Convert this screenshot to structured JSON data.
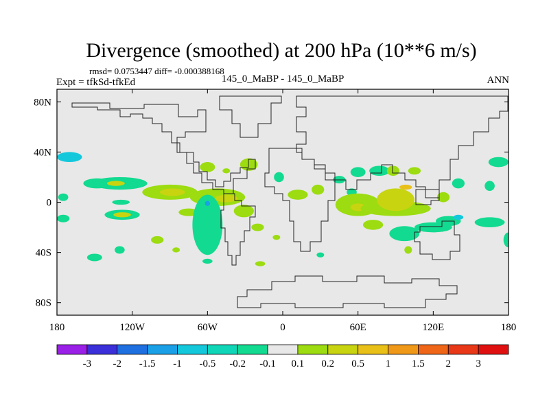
{
  "chart_data": {
    "type": "heatmap",
    "title": "Divergence (smoothed) at 200 hPa (10**6 m/s)",
    "stats": "rmsd= 0.0753447 diff= -0.000388168",
    "left_label": "Expt = tfkSd-tfkEd",
    "center_label": "145_0_MaBP - 145_0_MaBP",
    "right_label": "ANN",
    "xlim": [
      -180,
      180
    ],
    "ylim": [
      -90,
      90
    ],
    "x_ticks": [
      {
        "value": -180,
        "label": "180"
      },
      {
        "value": -120,
        "label": "120W"
      },
      {
        "value": -60,
        "label": "60W"
      },
      {
        "value": 0,
        "label": "0"
      },
      {
        "value": 60,
        "label": "60E"
      },
      {
        "value": 120,
        "label": "120E"
      },
      {
        "value": 180,
        "label": "180"
      }
    ],
    "y_ticks": [
      {
        "value": 80,
        "label": "80N"
      },
      {
        "value": 40,
        "label": "40N"
      },
      {
        "value": 0,
        "label": "0"
      },
      {
        "value": -40,
        "label": "40S"
      },
      {
        "value": -80,
        "label": "80S"
      }
    ],
    "background_color": "#e8e8e8",
    "colorbar": {
      "labels": [
        "-3",
        "-2",
        "-1.5",
        "-1",
        "-0.5",
        "-0.2",
        "-0.1",
        "0.1",
        "0.2",
        "0.5",
        "1",
        "1.5",
        "2",
        "3"
      ],
      "colors": [
        "#9a20e8",
        "#3a2fd8",
        "#1e6fe0",
        "#1aa0e6",
        "#14c8dc",
        "#10d6b8",
        "#12da90",
        "#e8e8e8",
        "#9cdc10",
        "#c8d410",
        "#e8c018",
        "#f09818",
        "#f06618",
        "#e83818",
        "#e01010"
      ]
    },
    "landmask_color": "#222222",
    "features": [
      {
        "lon": -157,
        "lat": -13,
        "rx": 13,
        "ry": 4,
        "level": 7
      },
      {
        "lon": -175,
        "lat": 4,
        "rx": 4,
        "ry": 3,
        "level": 6
      },
      {
        "lon": -148,
        "lat": 15,
        "rx": 11,
        "ry": 4,
        "level": 6
      },
      {
        "lon": -175,
        "lat": -13,
        "rx": 5,
        "ry": 3,
        "level": 6
      },
      {
        "lon": -170,
        "lat": 36,
        "rx": 10,
        "ry": 4,
        "level": 4
      },
      {
        "lon": -128,
        "lat": -10,
        "rx": 14,
        "ry": 4,
        "level": 6
      },
      {
        "lon": -128,
        "lat": -10,
        "rx": 7,
        "ry": 2,
        "level": 9
      },
      {
        "lon": -130,
        "lat": 15,
        "rx": 22,
        "ry": 5,
        "level": 6
      },
      {
        "lon": -133,
        "lat": 15,
        "rx": 7,
        "ry": 2,
        "level": 9
      },
      {
        "lon": -129,
        "lat": 0,
        "rx": 7,
        "ry": 2,
        "level": 6
      },
      {
        "lon": -90,
        "lat": 8,
        "rx": 22,
        "ry": 6,
        "level": 8
      },
      {
        "lon": -88,
        "lat": 8,
        "rx": 10,
        "ry": 3,
        "level": 9
      },
      {
        "lon": -75,
        "lat": -8,
        "rx": 8,
        "ry": 3,
        "level": 8
      },
      {
        "lon": -52,
        "lat": 4,
        "rx": 22,
        "ry": 7,
        "level": 8
      },
      {
        "lon": -45,
        "lat": 3,
        "rx": 9,
        "ry": 3,
        "level": 9
      },
      {
        "lon": -60,
        "lat": -18,
        "rx": 12,
        "ry": 24,
        "level": 6
      },
      {
        "lon": -60,
        "lat": -1,
        "rx": 2,
        "ry": 2,
        "level": 3
      },
      {
        "lon": -31,
        "lat": -7,
        "rx": 8,
        "ry": 5,
        "level": 8
      },
      {
        "lon": -100,
        "lat": -30,
        "rx": 5,
        "ry": 3,
        "level": 8
      },
      {
        "lon": -60,
        "lat": 28,
        "rx": 6,
        "ry": 4,
        "level": 8
      },
      {
        "lon": -45,
        "lat": 25,
        "rx": 3,
        "ry": 2,
        "level": 8
      },
      {
        "lon": -27,
        "lat": 30,
        "rx": 7,
        "ry": 5,
        "level": 8
      },
      {
        "lon": -3,
        "lat": 20,
        "rx": 4,
        "ry": 4,
        "level": 6
      },
      {
        "lon": -20,
        "lat": -20,
        "rx": 5,
        "ry": 3,
        "level": 8
      },
      {
        "lon": -5,
        "lat": -28,
        "rx": 3,
        "ry": 2,
        "level": 8
      },
      {
        "lon": -150,
        "lat": -44,
        "rx": 6,
        "ry": 3,
        "level": 6
      },
      {
        "lon": -130,
        "lat": -38,
        "rx": 4,
        "ry": 3,
        "level": 6
      },
      {
        "lon": -85,
        "lat": -38,
        "rx": 3,
        "ry": 2,
        "level": 8
      },
      {
        "lon": -60,
        "lat": -47,
        "rx": 4,
        "ry": 2,
        "level": 6
      },
      {
        "lon": -18,
        "lat": -49,
        "rx": 4,
        "ry": 2,
        "level": 8
      },
      {
        "lon": 12,
        "lat": 6,
        "rx": 8,
        "ry": 4,
        "level": 8
      },
      {
        "lon": 28,
        "lat": 10,
        "rx": 5,
        "ry": 4,
        "level": 8
      },
      {
        "lon": 45,
        "lat": 18,
        "rx": 5,
        "ry": 3,
        "level": 6
      },
      {
        "lon": 60,
        "lat": 24,
        "rx": 6,
        "ry": 4,
        "level": 6
      },
      {
        "lon": 55,
        "lat": 8,
        "rx": 4,
        "ry": 3,
        "level": 6
      },
      {
        "lon": 60,
        "lat": -2,
        "rx": 18,
        "ry": 9,
        "level": 8
      },
      {
        "lon": 60,
        "lat": -4,
        "rx": 6,
        "ry": 3,
        "level": 9
      },
      {
        "lon": 90,
        "lat": -5,
        "rx": 28,
        "ry": 6,
        "level": 8
      },
      {
        "lon": 90,
        "lat": 2,
        "rx": 15,
        "ry": 9,
        "level": 9
      },
      {
        "lon": 98,
        "lat": 12,
        "rx": 5,
        "ry": 2,
        "level": 10
      },
      {
        "lon": 72,
        "lat": -18,
        "rx": 8,
        "ry": 4,
        "level": 8
      },
      {
        "lon": 77,
        "lat": 25,
        "rx": 8,
        "ry": 4,
        "level": 6
      },
      {
        "lon": 88,
        "lat": 25,
        "rx": 5,
        "ry": 4,
        "level": 8
      },
      {
        "lon": 105,
        "lat": 25,
        "rx": 5,
        "ry": 3,
        "level": 8
      },
      {
        "lon": 97,
        "lat": -25,
        "rx": 12,
        "ry": 6,
        "level": 6
      },
      {
        "lon": 120,
        "lat": -20,
        "rx": 15,
        "ry": 4,
        "level": 6
      },
      {
        "lon": 132,
        "lat": -15,
        "rx": 10,
        "ry": 4,
        "level": 6
      },
      {
        "lon": 140,
        "lat": -12,
        "rx": 4,
        "ry": 2,
        "level": 4
      },
      {
        "lon": 165,
        "lat": -16,
        "rx": 12,
        "ry": 4,
        "level": 6
      },
      {
        "lon": 128,
        "lat": 4,
        "rx": 5,
        "ry": 4,
        "level": 8
      },
      {
        "lon": 140,
        "lat": 15,
        "rx": 5,
        "ry": 4,
        "level": 6
      },
      {
        "lon": 165,
        "lat": 13,
        "rx": 4,
        "ry": 4,
        "level": 6
      },
      {
        "lon": 172,
        "lat": 32,
        "rx": 8,
        "ry": 4,
        "level": 6
      },
      {
        "lon": 180,
        "lat": -30,
        "rx": 4,
        "ry": 6,
        "level": 6
      },
      {
        "lon": 100,
        "lat": -38,
        "rx": 3,
        "ry": 3,
        "level": 8
      },
      {
        "lon": 30,
        "lat": -42,
        "rx": 3,
        "ry": 2,
        "level": 6
      }
    ]
  }
}
